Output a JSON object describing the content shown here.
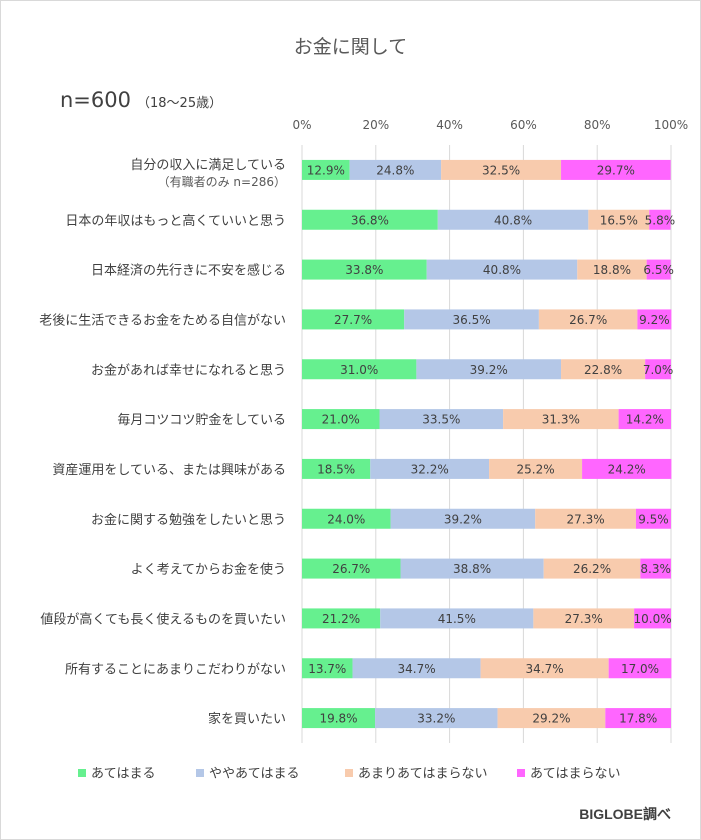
{
  "chart_data": {
    "type": "bar",
    "orientation": "horizontal",
    "stacked": true,
    "title": "お金に関して",
    "sample": {
      "n": "n=600",
      "age": "（18～25歳）"
    },
    "x_ticks": [
      "0%",
      "20%",
      "40%",
      "60%",
      "80%",
      "100%"
    ],
    "xlim": [
      0,
      100
    ],
    "legend_position": "bottom",
    "categories": [
      "自分の収入に満足している",
      "日本の年収はもっと高くていいと思う",
      "日本経済の先行きに不安を感じる",
      "老後に生活できるお金をためる自信がない",
      "お金があれば幸せになれると思う",
      "毎月コツコツ貯金をしている",
      "資産運用をしている、または興味がある",
      "お金に関する勉強をしたいと思う",
      "よく考えてからお金を使う",
      "値段が高くても長く使えるものを買いたい",
      "所有することにあまりこだわりがない",
      "家を買いたい"
    ],
    "category_notes": [
      "（有職者のみ n=286）",
      "",
      "",
      "",
      "",
      "",
      "",
      "",
      "",
      "",
      "",
      ""
    ],
    "series": [
      {
        "name": "あてはまる",
        "color": "#66f08f",
        "values": [
          12.9,
          36.8,
          33.8,
          27.7,
          31.0,
          21.0,
          18.5,
          24.0,
          26.7,
          21.2,
          13.7,
          19.8
        ],
        "labels": [
          "12.9%",
          "36.8%",
          "33.8%",
          "27.7%",
          "31.0%",
          "21.0%",
          "18.5%",
          "24.0%",
          "26.7%",
          "21.2%",
          "13.7%",
          "19.8%"
        ]
      },
      {
        "name": "ややあてはまる",
        "color": "#b4c7e7",
        "values": [
          24.8,
          40.8,
          40.8,
          36.5,
          39.2,
          33.5,
          32.2,
          39.2,
          38.8,
          41.5,
          34.7,
          33.2
        ],
        "labels": [
          "24.8%",
          "40.8%",
          "40.8%",
          "36.5%",
          "39.2%",
          "33.5%",
          "32.2%",
          "39.2%",
          "38.8%",
          "41.5%",
          "34.7%",
          "33.2%"
        ]
      },
      {
        "name": "あまりあてはまらない",
        "color": "#f8cbad",
        "values": [
          32.5,
          16.5,
          18.8,
          26.7,
          22.8,
          31.3,
          25.2,
          27.3,
          26.2,
          27.3,
          34.7,
          29.2
        ],
        "labels": [
          "32.5%",
          "16.5%",
          "18.8%",
          "26.7%",
          "22.8%",
          "31.3%",
          "25.2%",
          "27.3%",
          "26.2%",
          "27.3%",
          "34.7%",
          "29.2%"
        ]
      },
      {
        "name": "あてはまらない",
        "color": "#ff66ff",
        "values": [
          29.7,
          5.8,
          6.5,
          9.2,
          7.0,
          14.2,
          24.2,
          9.5,
          8.3,
          10.0,
          17.0,
          17.8
        ],
        "labels": [
          "29.7%",
          "5.8%",
          "6.5%",
          "9.2%",
          "7.0%",
          "14.2%",
          "24.2%",
          "9.5%",
          "8.3%",
          "10.0%",
          "17.0%",
          "17.8%"
        ]
      }
    ]
  },
  "source": "BIGLOBE調べ"
}
